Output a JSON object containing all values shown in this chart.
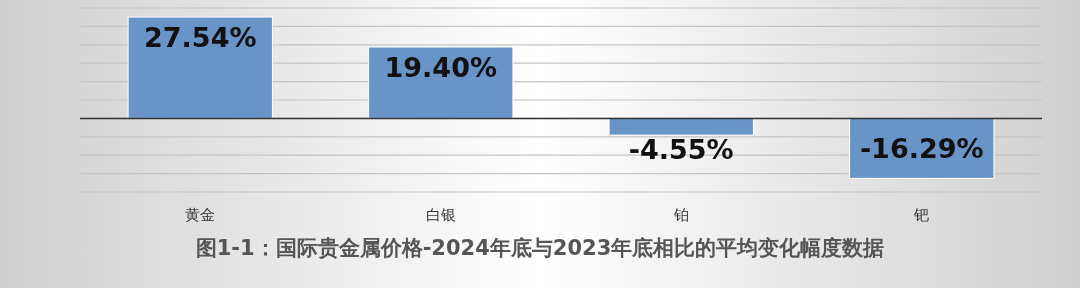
{
  "chart_data": {
    "type": "bar",
    "title": "图1-1：国际贵金属价格-2024年底与2023年底相比的平均变化幅度数据",
    "categories": [
      "黄金",
      "白银",
      "铂",
      "钯"
    ],
    "values": [
      27.54,
      19.4,
      -4.55,
      -16.29
    ],
    "value_labels": [
      "27.54%",
      "19.40%",
      "-4.55%",
      "-16.29%"
    ],
    "color": "#6894c8",
    "ylim": [
      -20,
      30
    ],
    "yticks": [
      {
        "value": -20,
        "label": null
      },
      {
        "value": -15,
        "label": null
      },
      {
        "value": -10,
        "label": null
      },
      {
        "value": -5,
        "label": null
      },
      {
        "value": 0,
        "label": null
      },
      {
        "value": 5,
        "label": null
      },
      {
        "value": 10,
        "label": null
      },
      {
        "value": 15,
        "label": null
      },
      {
        "value": 20,
        "label": null
      },
      {
        "value": 25,
        "label": null
      },
      {
        "value": 30,
        "label": null
      }
    ],
    "grid": "y",
    "tick_labels": "x"
  }
}
